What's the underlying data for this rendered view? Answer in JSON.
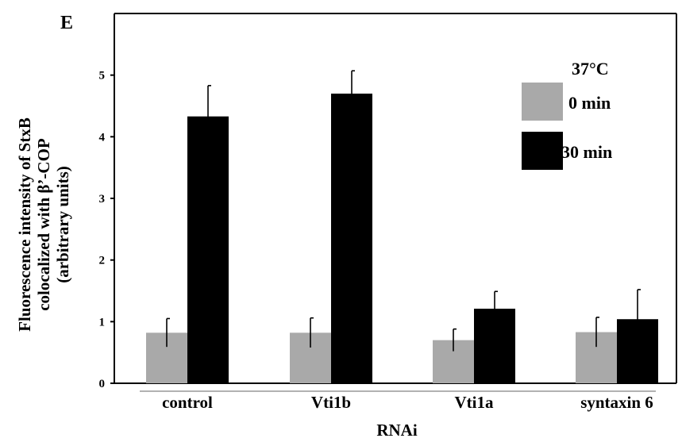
{
  "panel_label": "E",
  "chart_data": {
    "type": "bar",
    "categories": [
      "control",
      "Vti1b",
      "Vti1a",
      "syntaxin 6"
    ],
    "category_group_label": "RNAi",
    "ylabel_lines": [
      "Fluorescence intensity of StxB",
      "colocalized with β’-COP",
      "(arbitrary units)"
    ],
    "ylim": [
      0,
      6
    ],
    "yticks": [
      "0",
      "1",
      "2",
      "3",
      "4",
      "5"
    ],
    "legend_title": "37°C",
    "legend_position": "top-right",
    "series": [
      {
        "name": "0 min",
        "color": "#a9a9a9",
        "values": [
          0.82,
          0.82,
          0.7,
          0.83
        ],
        "errors": [
          0.23,
          0.24,
          0.18,
          0.24
        ]
      },
      {
        "name": "30 min",
        "color": "#000000",
        "values": [
          4.33,
          4.7,
          1.21,
          1.04
        ],
        "errors": [
          0.5,
          0.37,
          0.28,
          0.48
        ]
      }
    ]
  }
}
